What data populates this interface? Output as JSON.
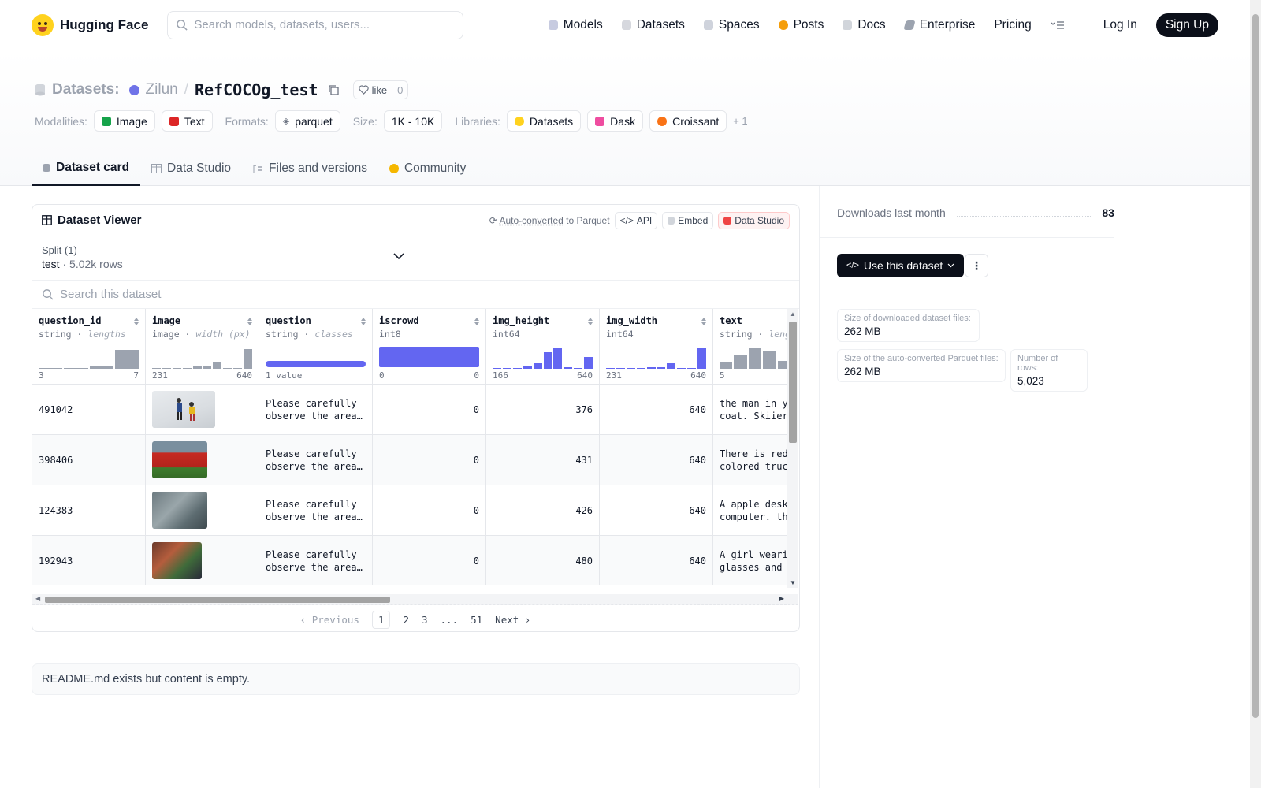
{
  "nav": {
    "brand": "Hugging Face",
    "search_placeholder": "Search models, datasets, users...",
    "links": [
      "Models",
      "Datasets",
      "Spaces",
      "Posts",
      "Docs",
      "Enterprise",
      "Pricing"
    ],
    "login": "Log In",
    "signup": "Sign Up"
  },
  "header": {
    "section": "Datasets:",
    "user": "Zilun",
    "repo": "RefCOCOg_test",
    "like_label": "like",
    "like_count": "0",
    "modalities_label": "Modalities:",
    "modalities": [
      "Image",
      "Text"
    ],
    "formats_label": "Formats:",
    "format": "parquet",
    "size_label": "Size:",
    "size": "1K - 10K",
    "libraries_label": "Libraries:",
    "libraries": [
      "Datasets",
      "Dask",
      "Croissant"
    ],
    "more": "+ 1"
  },
  "tabs": [
    "Dataset card",
    "Data Studio",
    "Files and versions",
    "Community"
  ],
  "viewer": {
    "title": "Dataset Viewer",
    "auto_converted": "Auto-converted",
    "to_parquet": "to Parquet",
    "api": "API",
    "embed": "Embed",
    "data_studio": "Data Studio",
    "split_label": "Split (1)",
    "split_name": "test",
    "split_rows": "5.02k rows",
    "search_placeholder": "Search this dataset",
    "columns": [
      {
        "name": "question_id",
        "type": "string",
        "sub": "lengths",
        "min": "3",
        "max": "7",
        "hist": [
          0.05,
          0.05,
          0.1,
          0.85
        ],
        "blue": false
      },
      {
        "name": "image",
        "type": "image",
        "sub": "width (px)",
        "min": "231",
        "max": "640",
        "hist": [
          0.05,
          0.05,
          0.05,
          0.05,
          0.1,
          0.1,
          0.3,
          0.05,
          0.05,
          0.9
        ],
        "blue": false
      },
      {
        "name": "question",
        "type": "string",
        "sub": "classes",
        "min": "1 value",
        "max": "",
        "hist": [],
        "blue": true
      },
      {
        "name": "iscrowd",
        "type": "int8",
        "sub": "",
        "min": "0",
        "max": "0",
        "hist": [],
        "blue": true
      },
      {
        "name": "img_height",
        "type": "int64",
        "sub": "",
        "min": "166",
        "max": "640",
        "hist": [
          0.05,
          0.05,
          0.05,
          0.12,
          0.25,
          0.75,
          0.95,
          0.08,
          0.05,
          0.55
        ],
        "blue": true
      },
      {
        "name": "img_width",
        "type": "int64",
        "sub": "",
        "min": "231",
        "max": "640",
        "hist": [
          0.04,
          0.04,
          0.04,
          0.05,
          0.08,
          0.06,
          0.25,
          0.05,
          0.05,
          0.95
        ],
        "blue": true
      },
      {
        "name": "text",
        "type": "string",
        "sub": "leng",
        "min": "5",
        "max": "",
        "hist": [
          0.3,
          0.65,
          0.95,
          0.8,
          0.35,
          0.15,
          0.05
        ],
        "blue": false
      }
    ],
    "rows": [
      {
        "question_id": "491042",
        "question": "Please carefully\nobserve the area…",
        "iscrowd": "0",
        "img_height": "376",
        "img_width": "640",
        "text": "the man in yellow\ncoat. Skiier",
        "thumb": "skiers"
      },
      {
        "question_id": "398406",
        "question": "Please carefully\nobserve the area…",
        "iscrowd": "0",
        "img_height": "431",
        "img_width": "640",
        "text": "There is red\ncolored truck",
        "thumb": "truck"
      },
      {
        "question_id": "124383",
        "question": "Please carefully\nobserve the area…",
        "iscrowd": "0",
        "img_height": "426",
        "img_width": "640",
        "text": "A apple desktop\ncomputer. the",
        "thumb": "desk"
      },
      {
        "question_id": "192943",
        "question": "Please carefully\nobserve the area…",
        "iscrowd": "0",
        "img_height": "480",
        "img_width": "640",
        "text": "A girl wearing\nglasses and a",
        "thumb": "party"
      }
    ],
    "pager": {
      "prev": "Previous",
      "pages": [
        "1",
        "2",
        "3",
        "...",
        "51"
      ],
      "next": "Next"
    }
  },
  "readme": "README.md exists but content is empty.",
  "sidebar": {
    "downloads_label": "Downloads last month",
    "downloads": "83",
    "use_button": "Use this dataset",
    "stats": [
      {
        "label": "Size of downloaded dataset files:",
        "value": "262 MB"
      },
      {
        "label": "Size of the auto-converted Parquet files:",
        "value": "262 MB"
      },
      {
        "label": "Number of rows:",
        "value": "5,023"
      }
    ]
  },
  "colors": {
    "accent_blue": "#6366f1",
    "brand_yellow": "#ffd21e",
    "dark_button": "#0b0f19"
  }
}
